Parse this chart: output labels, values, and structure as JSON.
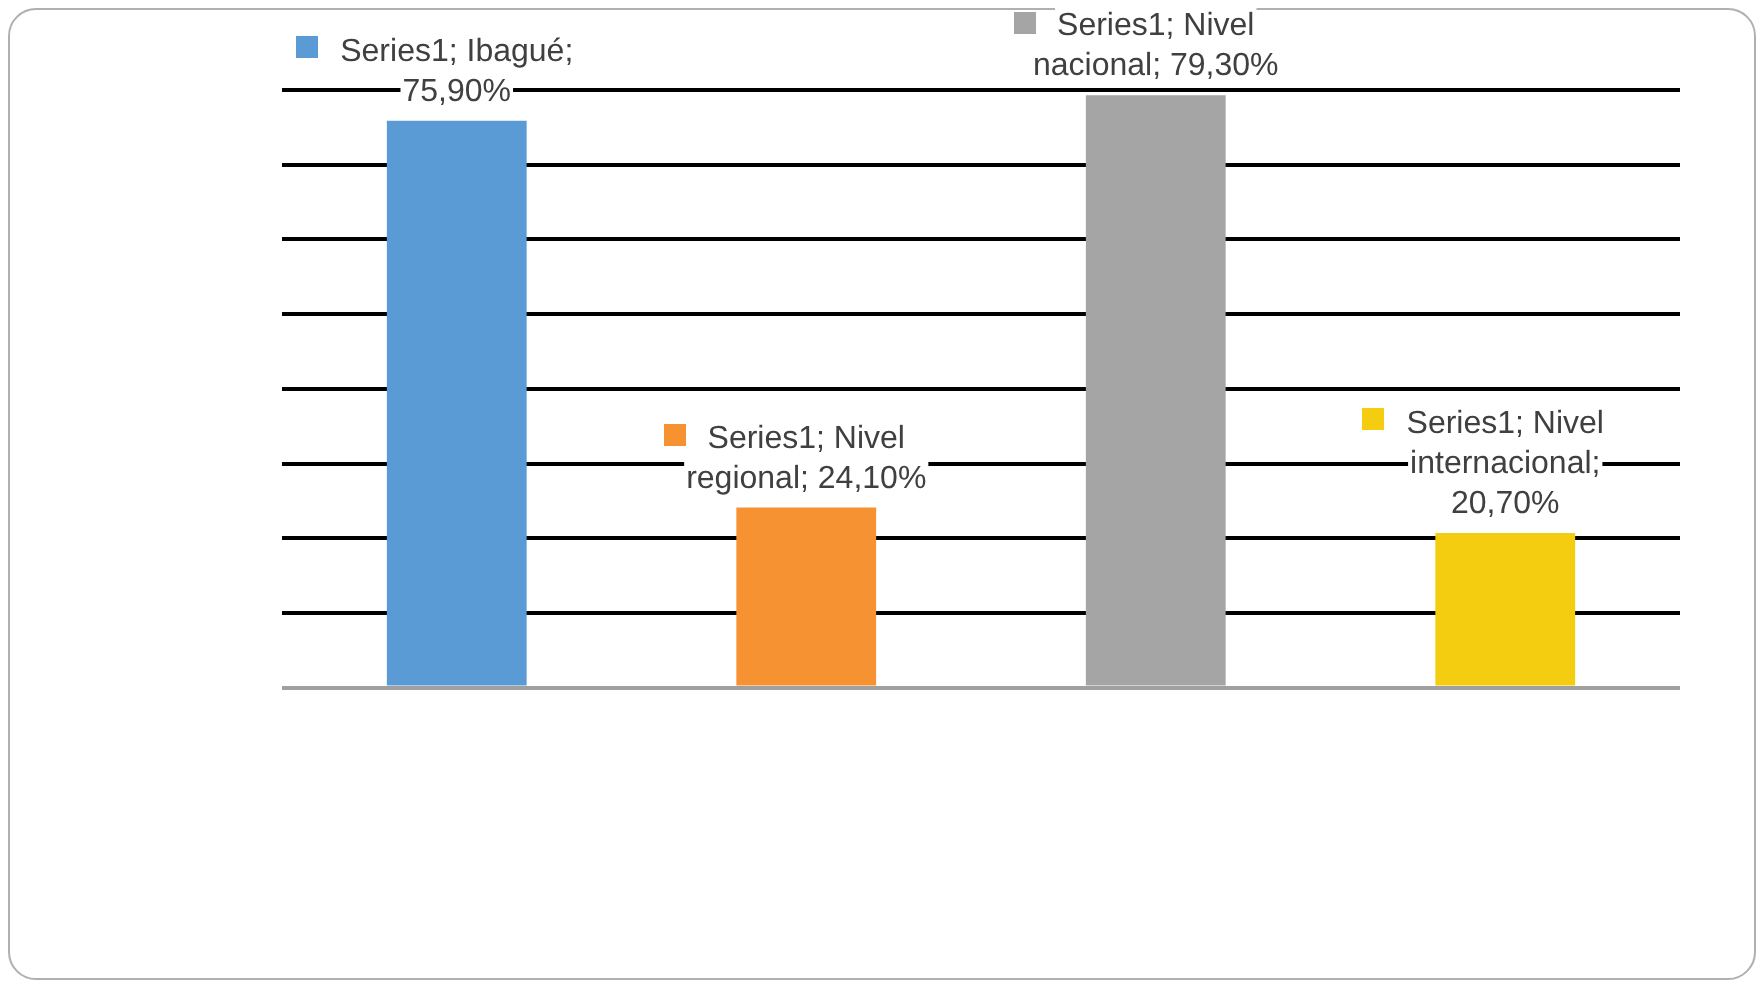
{
  "chart_data": {
    "type": "bar",
    "categories": [
      null,
      null,
      null,
      null
    ],
    "values": [
      75.9,
      24.1,
      79.3,
      20.7
    ],
    "colors": [
      "#5b9bd5",
      "#f79232",
      "#a5a5a5",
      "#f5cd10"
    ],
    "value_labels": [
      "Series1; Ibagué; 75,90%",
      "Series1; Nivel regional; 24,10%",
      "Series1; Nivel nacional; 79,30%",
      "Series1; Nivel internacional; 20,70%"
    ],
    "ylim": [
      0,
      80
    ],
    "yticks": [
      {
        "value": 0,
        "label": null
      },
      {
        "value": 10,
        "label": null
      },
      {
        "value": 20,
        "label": null
      },
      {
        "value": 30,
        "label": null
      },
      {
        "value": 40,
        "label": null
      },
      {
        "value": 50,
        "label": null
      },
      {
        "value": 60,
        "label": null
      },
      {
        "value": 70,
        "label": null
      },
      {
        "value": 80,
        "label": null
      }
    ],
    "grid": "y"
  }
}
